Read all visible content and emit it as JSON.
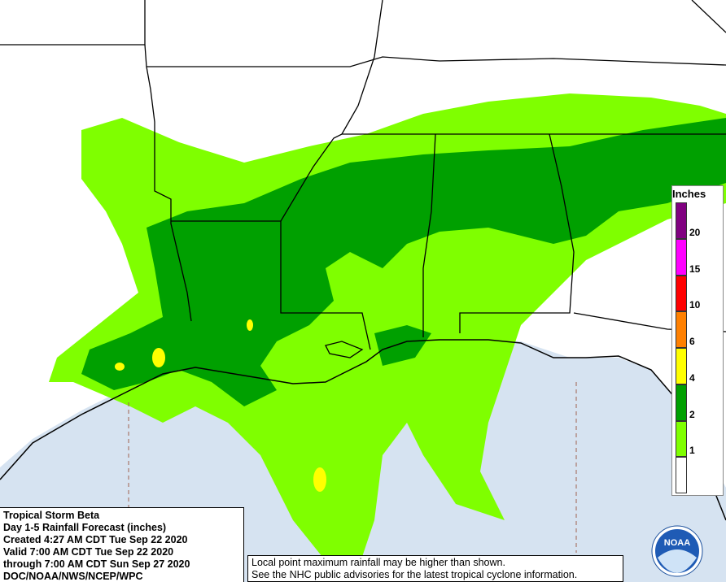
{
  "info": {
    "lines": [
      "Tropical Storm Beta",
      "Day 1-5 Rainfall Forecast (inches)",
      "Created 4:27 AM CDT Tue Sep 22 2020",
      "Valid 7:00 AM CDT Tue Sep 22 2020",
      "through 7:00 AM CDT Sun Sep 27 2020",
      "DOC/NOAA/NWS/NCEP/WPC"
    ]
  },
  "disclaimer": [
    "Local point maximum rainfall may be higher than shown.",
    "See the NHC public advisories for the latest tropical cyclone information."
  ],
  "legend": {
    "title": "Inches",
    "breaks": [
      "1",
      "2",
      "4",
      "6",
      "10",
      "15",
      "20"
    ],
    "colors": [
      "#ffffff",
      "#7fff00",
      "#00a000",
      "#ffff00",
      "#ff8000",
      "#ff0000",
      "#ff00ff",
      "#800080"
    ]
  },
  "logo": "NOAA"
}
